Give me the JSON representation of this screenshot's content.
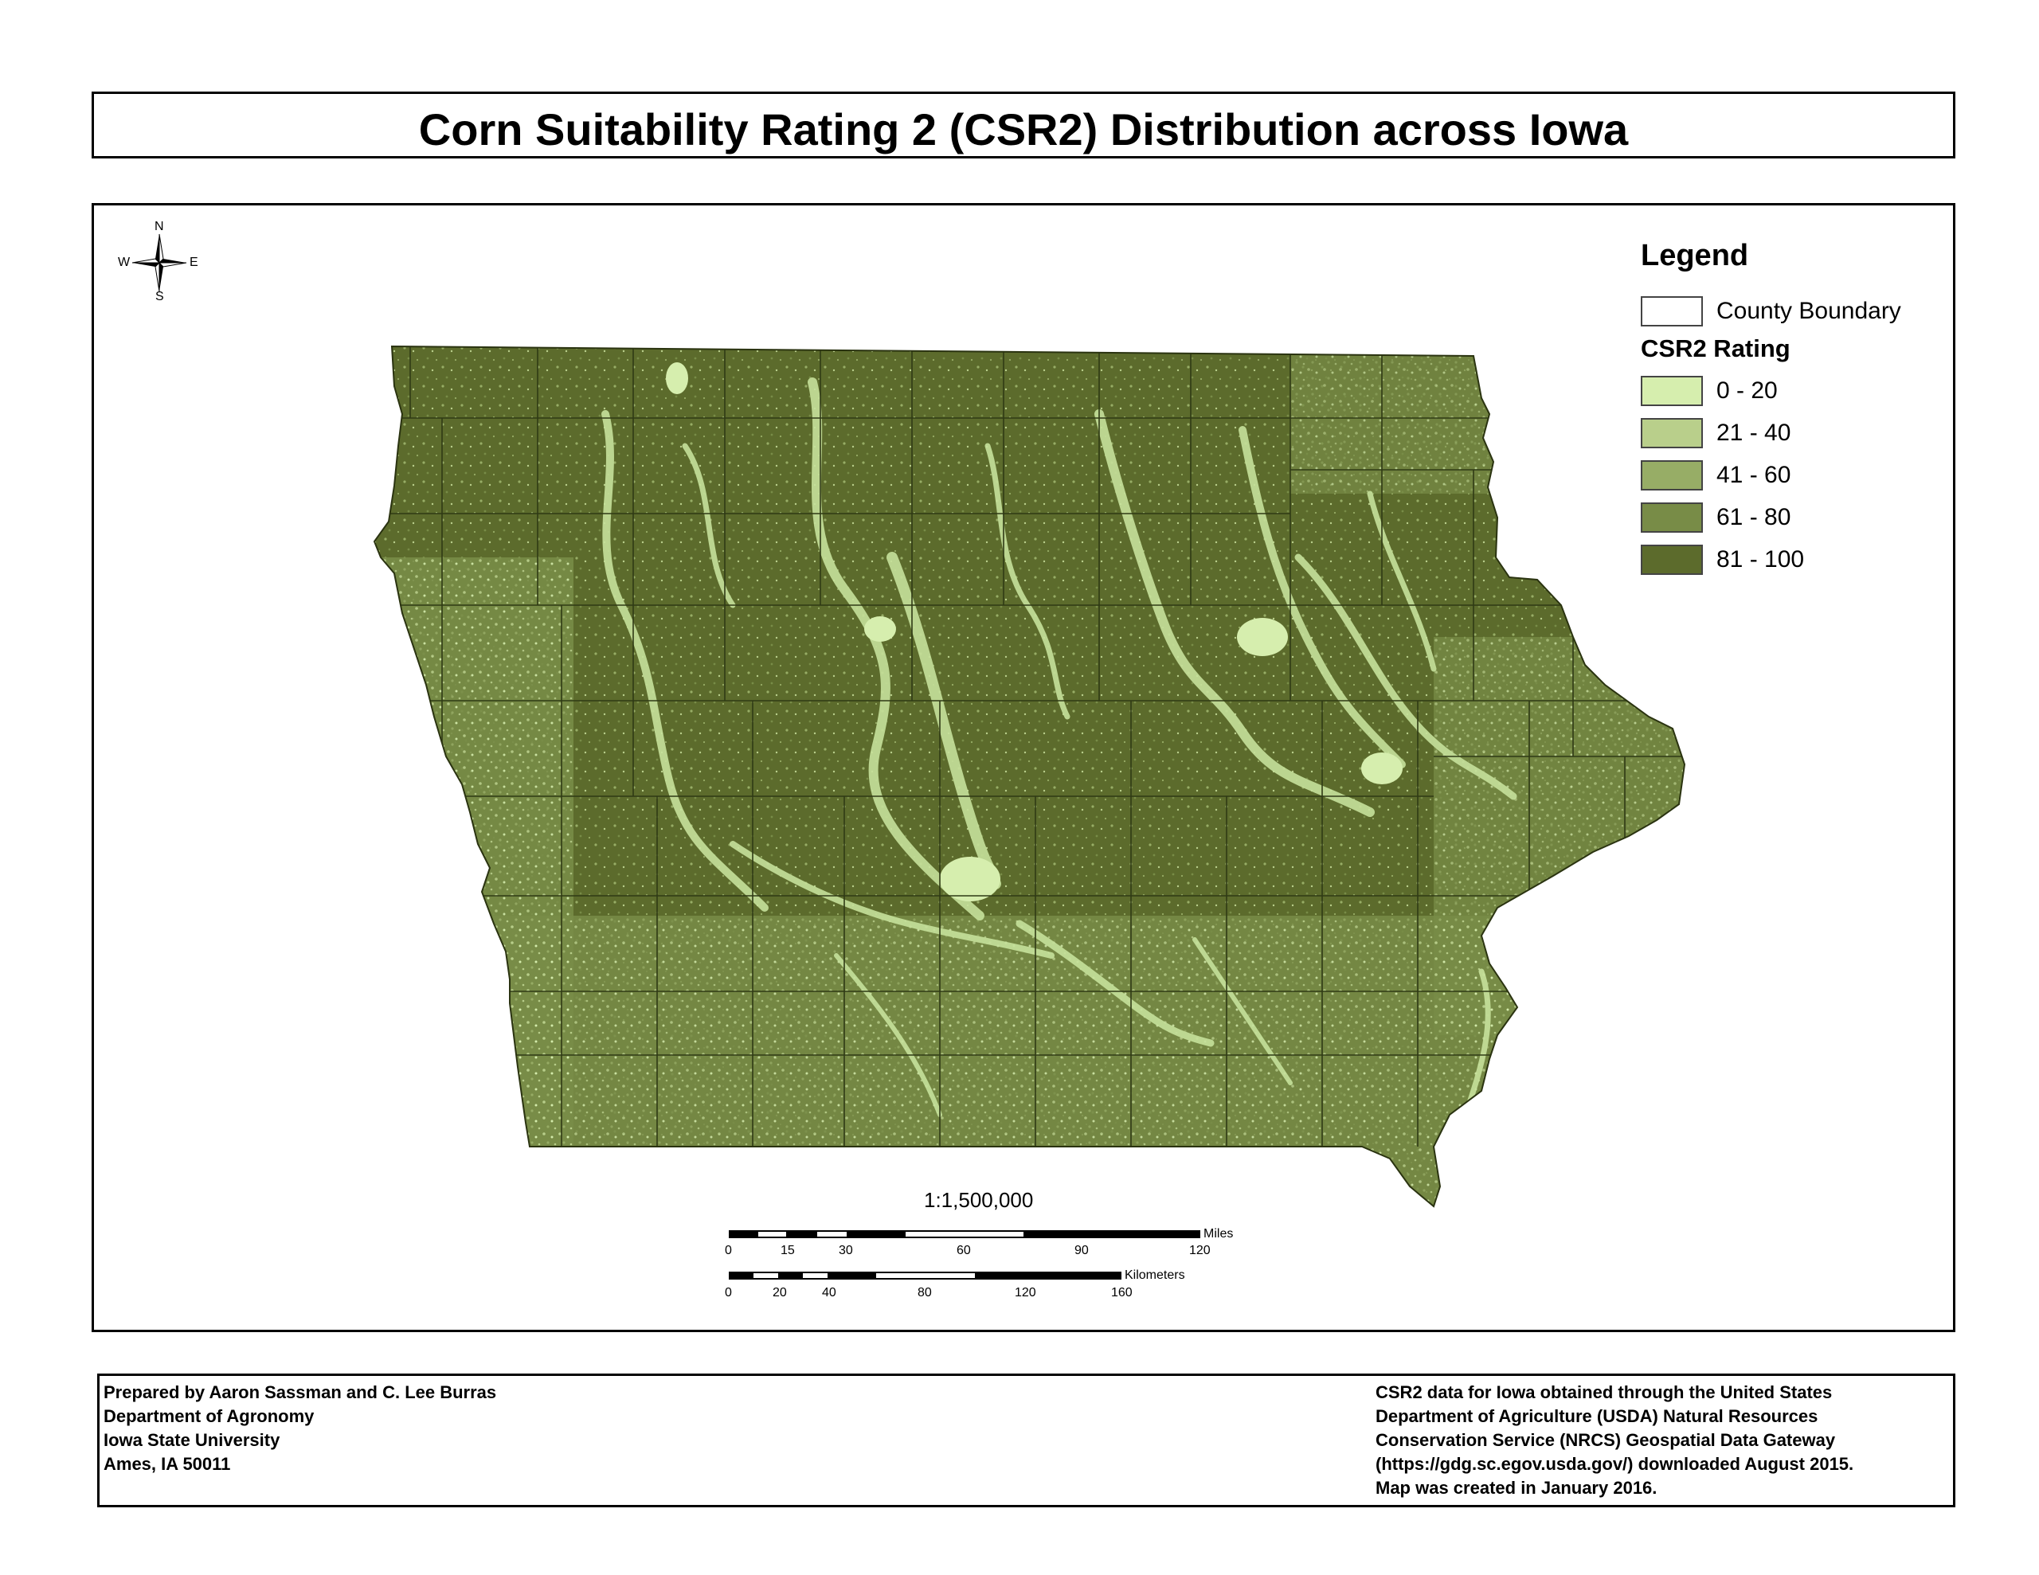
{
  "title": "Corn Suitability Rating 2 (CSR2) Distribution across Iowa",
  "compass": {
    "n": "N",
    "s": "S",
    "e": "E",
    "w": "W"
  },
  "legend": {
    "title": "Legend",
    "county_boundary_label": "County Boundary",
    "rating_title": "CSR2 Rating",
    "classes": [
      {
        "label": "0 - 20",
        "color": "#d6eeae"
      },
      {
        "label": "21 - 40",
        "color": "#b9cf8b"
      },
      {
        "label": "41 - 60",
        "color": "#97ad66"
      },
      {
        "label": "61 - 80",
        "color": "#788c47"
      },
      {
        "label": "81 - 100",
        "color": "#5c6b2c"
      }
    ]
  },
  "scale": {
    "ratio": "1:1,500,000",
    "miles": {
      "unit": "Miles",
      "ticks": [
        "0",
        "15",
        "30",
        "60",
        "90",
        "120"
      ]
    },
    "kilometers": {
      "unit": "Kilometers",
      "ticks": [
        "0",
        "20",
        "40",
        "80",
        "120",
        "160"
      ]
    }
  },
  "footer": {
    "left": [
      "Prepared by Aaron Sassman and C. Lee Burras",
      "Department of Agronomy",
      "Iowa State University",
      "Ames, IA 50011"
    ],
    "right": [
      "CSR2 data for Iowa obtained through the United States",
      "Department of Agriculture (USDA) Natural Resources",
      "Conservation Service (NRCS) Geospatial Data Gateway",
      "(https://gdg.sc.egov.usda.gov/) downloaded August 2015.",
      "Map was created in January 2016."
    ]
  }
}
